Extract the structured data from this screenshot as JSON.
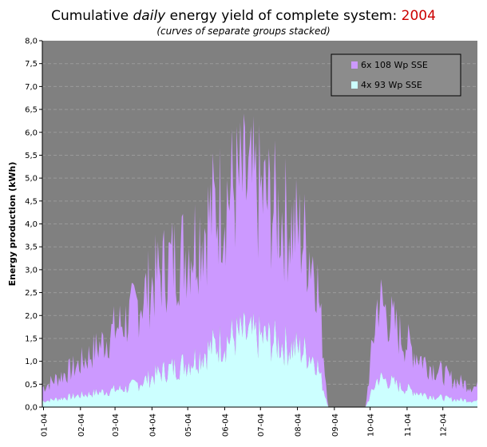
{
  "chart_data": {
    "type": "area",
    "title_prefix": "Cumulative ",
    "title_italic": "daily",
    "title_middle": " energy yield of complete system: ",
    "title_year": "2004",
    "subtitle": "(curves of separate groups stacked)",
    "ylabel": "Energy production (kWh)",
    "xlabel": "",
    "ylim": [
      0,
      8
    ],
    "y_ticks": [
      "0,0",
      "0,5",
      "1,0",
      "1,5",
      "2,0",
      "2,5",
      "3,0",
      "3,5",
      "4,0",
      "4,5",
      "5,0",
      "5,5",
      "6,0",
      "6,5",
      "7,0",
      "7,5",
      "8,0"
    ],
    "x_ticks": [
      "01-04",
      "02-04",
      "03-04",
      "04-04",
      "05-04",
      "06-04",
      "07-04",
      "08-04",
      "09-04",
      "10-04",
      "11-04",
      "12-04"
    ],
    "grid": true,
    "legend_position": "top-right",
    "stacked": true,
    "series": [
      {
        "name": "4x 93 Wp SSE",
        "color": "#ccffff",
        "values": [
          0.15,
          0.2,
          0.25,
          0.3,
          0.35,
          0.4,
          0.45,
          0.5,
          0.65,
          0.8,
          0.95,
          1.05,
          1.2,
          1.4,
          1.6,
          1.75,
          1.85,
          1.8,
          1.75,
          1.65,
          1.55,
          1.45,
          1.25,
          0.0,
          0.0,
          0.0,
          0.0,
          0.75,
          0.65,
          0.5,
          0.4,
          0.3,
          0.25,
          0.2,
          0.18,
          0.15
        ]
      },
      {
        "name": "6x 108 Wp SSE",
        "color": "#cc99ff",
        "values": [
          0.35,
          0.5,
          0.65,
          0.8,
          1.05,
          1.3,
          1.6,
          1.8,
          2.15,
          2.45,
          2.7,
          2.85,
          3.0,
          3.25,
          3.55,
          3.75,
          3.85,
          3.75,
          3.55,
          3.35,
          3.15,
          2.9,
          2.45,
          0.0,
          0.0,
          0.0,
          0.0,
          2.05,
          1.6,
          1.25,
          1.0,
          0.8,
          0.65,
          0.5,
          0.42,
          0.35
        ]
      }
    ]
  },
  "colors": {
    "plot_background": "#808080",
    "gridline": "#9a9a9a",
    "legend_background": "#8c8c8c",
    "gap_bars": "#6f6f6f"
  }
}
